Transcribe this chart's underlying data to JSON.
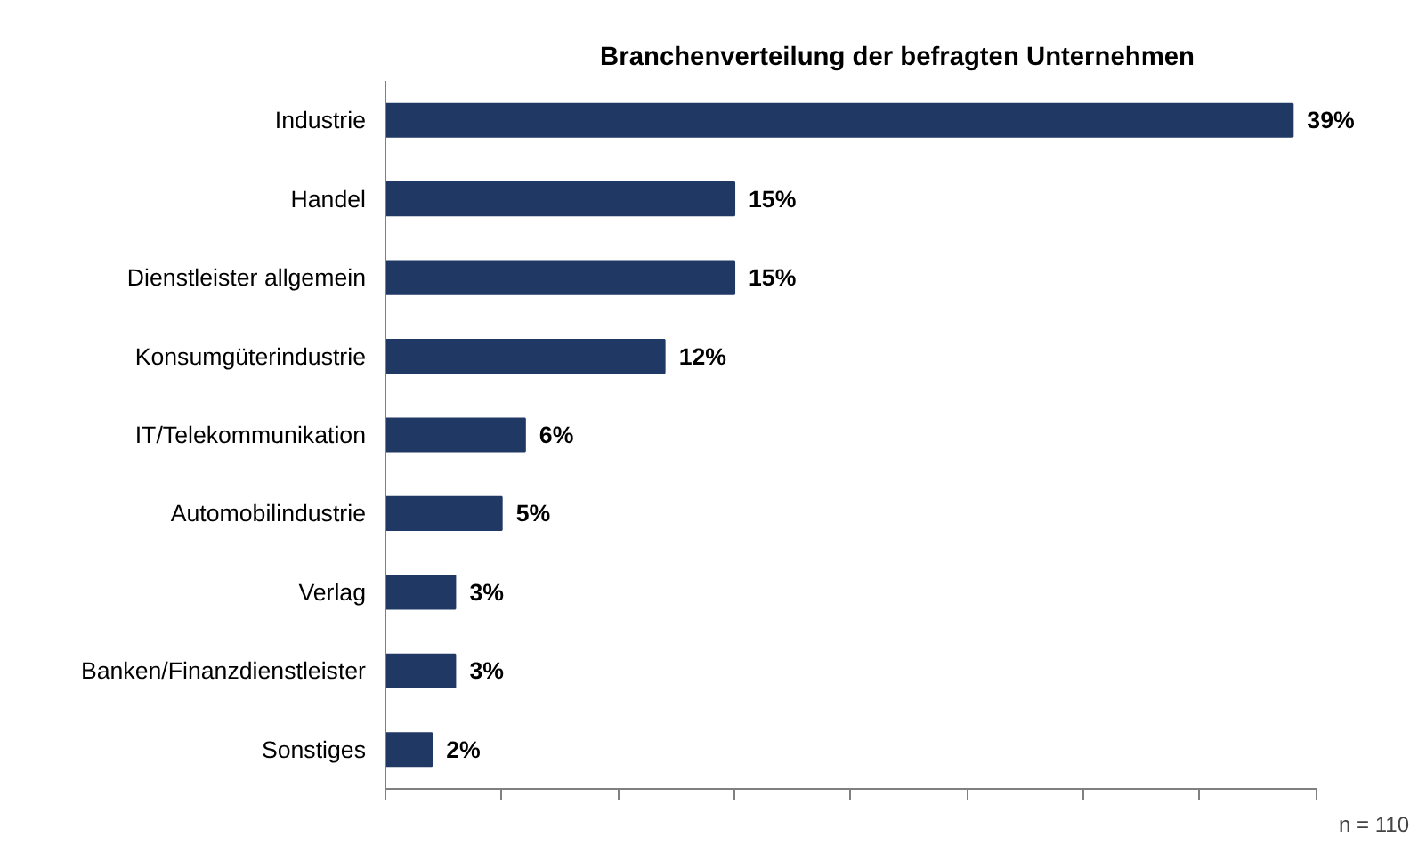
{
  "chart_data": {
    "type": "bar",
    "orientation": "horizontal",
    "title": "Branchenverteilung der befragten Unternehmen",
    "categories": [
      "Industrie",
      "Handel",
      "Dienstleister allgemein",
      "Konsumgüterindustrie",
      "IT/Telekommunikation",
      "Automobilindustrie",
      "Verlag",
      "Banken/Finanzdienstleister",
      "Sonstiges"
    ],
    "values": [
      39,
      15,
      15,
      12,
      6,
      5,
      3,
      3,
      2
    ],
    "value_labels": [
      "39%",
      "15%",
      "15%",
      "12%",
      "6%",
      "5%",
      "3%",
      "3%",
      "2%"
    ],
    "color": "#203864",
    "xlim": [
      0,
      40
    ],
    "xticks": [
      {
        "value": 0,
        "label": null
      },
      {
        "value": 5,
        "label": null
      },
      {
        "value": 10,
        "label": null
      },
      {
        "value": 15,
        "label": null
      },
      {
        "value": 20,
        "label": null
      },
      {
        "value": 25,
        "label": null
      },
      {
        "value": 30,
        "label": null
      },
      {
        "value": 35,
        "label": null
      },
      {
        "value": 40,
        "label": null
      }
    ],
    "tick_labels": "y",
    "grid": false,
    "annotations": [
      "n = 110"
    ]
  }
}
